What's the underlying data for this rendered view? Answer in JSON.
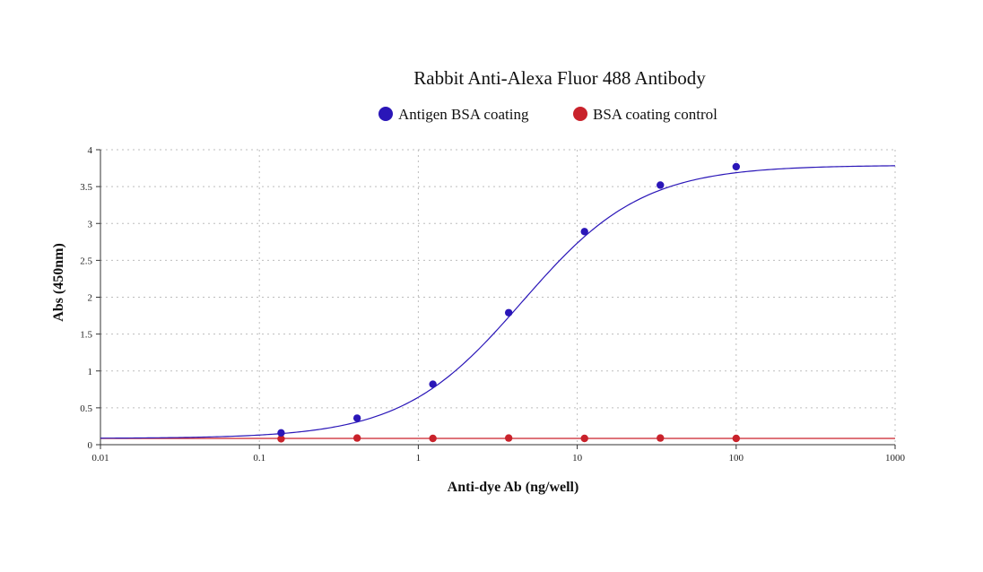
{
  "chart_data": {
    "type": "scatter",
    "title": "Rabbit Anti-Alexa Fluor 488 Antibody",
    "xlabel": "Anti-dye Ab (ng/well)",
    "ylabel": "Abs (450nm)",
    "x_scale": "log",
    "xlim": [
      0.01,
      1000
    ],
    "ylim": [
      0,
      4
    ],
    "x_ticks": [
      "0.01",
      "0.1",
      "1",
      "10",
      "100",
      "1000"
    ],
    "y_ticks": [
      "0",
      "0.5",
      "1",
      "1.5",
      "2",
      "2.5",
      "3",
      "3.5",
      "4"
    ],
    "grid": true,
    "legend_position": "top",
    "series": [
      {
        "name": "Antigen BSA coating",
        "color": "#2a16b8",
        "x": [
          0.137,
          0.412,
          1.235,
          3.704,
          11.11,
          33.33,
          100
        ],
        "y": [
          0.16,
          0.36,
          0.82,
          1.79,
          2.89,
          3.52,
          3.77
        ],
        "fit": "4PL sigmoid"
      },
      {
        "name": "BSA coating control",
        "color": "#c9222b",
        "x": [
          0.137,
          0.412,
          1.235,
          3.704,
          11.11,
          33.33,
          100
        ],
        "y": [
          0.08,
          0.09,
          0.085,
          0.09,
          0.085,
          0.09,
          0.085
        ],
        "fit": "flat"
      }
    ]
  }
}
